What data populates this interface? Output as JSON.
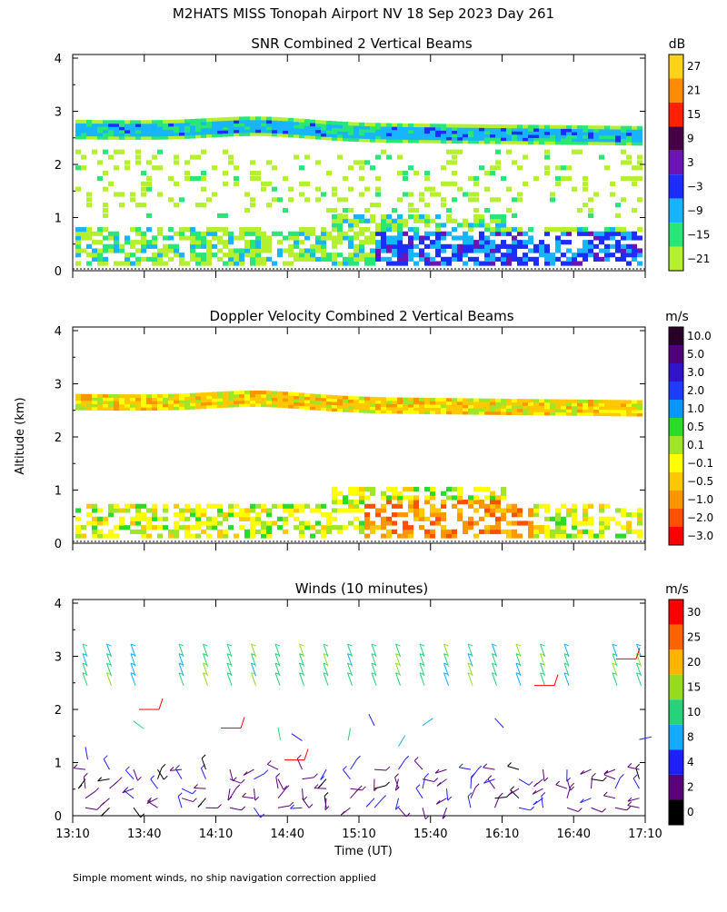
{
  "title": "M2HATS MISS Tonopah Airport NV  18 Sep 2023 Day 261",
  "shared_ylabel": "Altitude (km)",
  "footnote": "Simple moment winds, no ship navigation correction applied",
  "chart_data": [
    {
      "type": "heatmap",
      "title": "SNR Combined 2 Vertical Beams",
      "xlabel": "",
      "ylabel": "Altitude (km)",
      "ylim": [
        0,
        4
      ],
      "yticks": [
        "0",
        "1",
        "2",
        "3",
        "4"
      ],
      "colorbar": {
        "unit": "dB",
        "labels": [
          "27",
          "21",
          "15",
          "9",
          "3",
          "−3",
          "−9",
          "−15",
          "−21"
        ],
        "colors": [
          "#ffd21a",
          "#ff8c00",
          "#ff2000",
          "#460046",
          "#6e14b4",
          "#1e2dff",
          "#19b4ff",
          "#28e678",
          "#b4f02d"
        ]
      },
      "layers": [
        {
          "name": "inversion band",
          "alt_km": [
            2.45,
            2.85
          ],
          "color": "#19b4ff"
        },
        {
          "name": "boundary layer",
          "alt_km": [
            0.1,
            1.2
          ],
          "color": "#b4f02d"
        }
      ]
    },
    {
      "type": "heatmap",
      "title": "Doppler Velocity Combined 2 Vertical Beams",
      "xlabel": "",
      "ylabel": "Altitude (km)",
      "ylim": [
        0,
        4
      ],
      "yticks": [
        "0",
        "1",
        "2",
        "3",
        "4"
      ],
      "colorbar": {
        "unit": "m/s",
        "labels": [
          "10.0",
          "5.0",
          "3.0",
          "2.0",
          "1.0",
          "0.5",
          "0.1",
          "−0.1",
          "−0.5",
          "−1.0",
          "−2.0",
          "−3.0"
        ],
        "colors": [
          "#280028",
          "#500078",
          "#3214c8",
          "#1e3cff",
          "#0a96ff",
          "#28dc28",
          "#a0e628",
          "#ffff00",
          "#ffc800",
          "#ff9600",
          "#ff5000",
          "#ff0000"
        ]
      }
    },
    {
      "type": "scatter",
      "title": "Winds (10 minutes)",
      "xlabel": "Time (UT)",
      "ylabel": "Altitude (km)",
      "ylim": [
        0,
        4
      ],
      "yticks": [
        "0",
        "1",
        "2",
        "3",
        "4"
      ],
      "xticks": [
        "13:10",
        "13:40",
        "14:10",
        "14:40",
        "15:10",
        "15:40",
        "16:10",
        "16:40",
        "17:10"
      ],
      "colorbar": {
        "unit": "m/s",
        "labels": [
          "30",
          "25",
          "20",
          "15",
          "10",
          "8",
          "4",
          "2",
          "0"
        ],
        "colors": [
          "#ff0000",
          "#ff6400",
          "#ffb400",
          "#96dc1e",
          "#28d278",
          "#14aaff",
          "#1e1eff",
          "#5a0078",
          "#000000"
        ]
      }
    }
  ]
}
